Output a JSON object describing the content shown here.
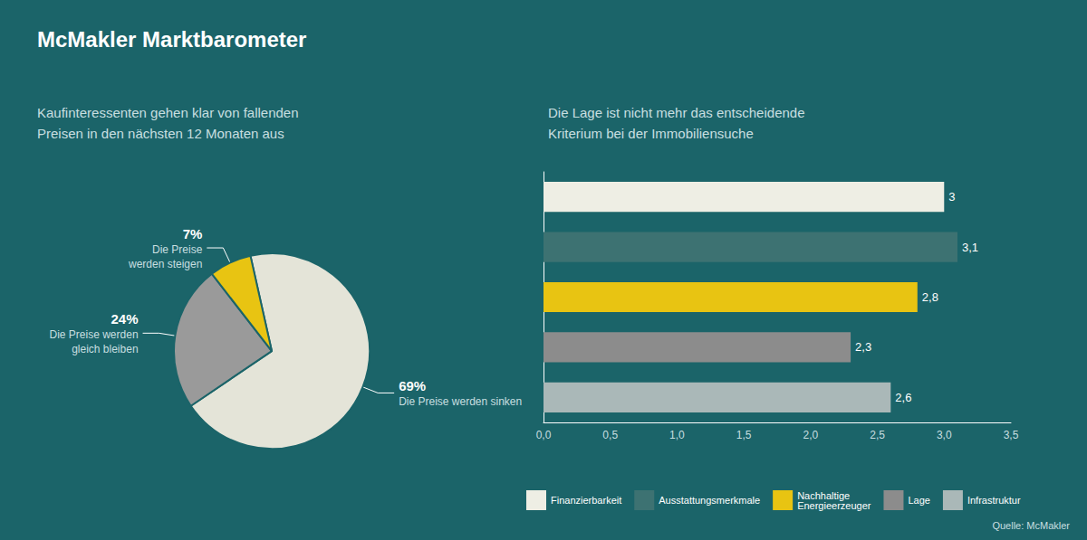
{
  "title": "McMakler Marktbarometer",
  "annotations": [
    "Quelle: McMakler"
  ],
  "chart_data": [
    {
      "type": "pie",
      "subtitle": "Kaufinteressenten gehen klar von fallenden\nPreisen in den nächsten 12 Monaten aus",
      "categories": [
        "Die Preise werden sinken",
        "Die Preise werden\ngleich bleiben",
        "Die Preise\nwerden steigen"
      ],
      "values": [
        69,
        24,
        7
      ],
      "value_labels": [
        "69%",
        "24%",
        "7%"
      ],
      "colors": [
        "#e4e4d8",
        "#9a9a9a",
        "#e8c412"
      ],
      "data_labels": true
    },
    {
      "type": "bar",
      "orientation": "horizontal",
      "subtitle": "Die Lage ist nicht mehr das entscheidende\nKriterium bei der Immobiliensuche",
      "categories": [
        "Finanzierbarkeit",
        "Ausstattungsmerkmale",
        "Nachhaltige\nEnergieerzeuger",
        "Lage",
        "Infrastruktur"
      ],
      "values": [
        3.0,
        3.1,
        2.8,
        2.3,
        2.6
      ],
      "value_labels": [
        "3",
        "3,1",
        "2,8",
        "2,3",
        "2,6"
      ],
      "colors": [
        "#eeeee4",
        "#3d7272",
        "#e8c412",
        "#8c8c8c",
        "#aab8b8"
      ],
      "data_labels": true,
      "xlim": [
        0,
        3.5
      ],
      "xticks": [
        {
          "value": 0.0,
          "label": "0,0"
        },
        {
          "value": 0.5,
          "label": "0,5"
        },
        {
          "value": 1.0,
          "label": "1,0"
        },
        {
          "value": 1.5,
          "label": "1,5"
        },
        {
          "value": 2.0,
          "label": "2,0"
        },
        {
          "value": 2.5,
          "label": "2,5"
        },
        {
          "value": 3.0,
          "label": "3,0"
        },
        {
          "value": 3.5,
          "label": "3,5"
        }
      ],
      "grid": false,
      "tick_labels": "x",
      "legend": "bottom"
    }
  ]
}
